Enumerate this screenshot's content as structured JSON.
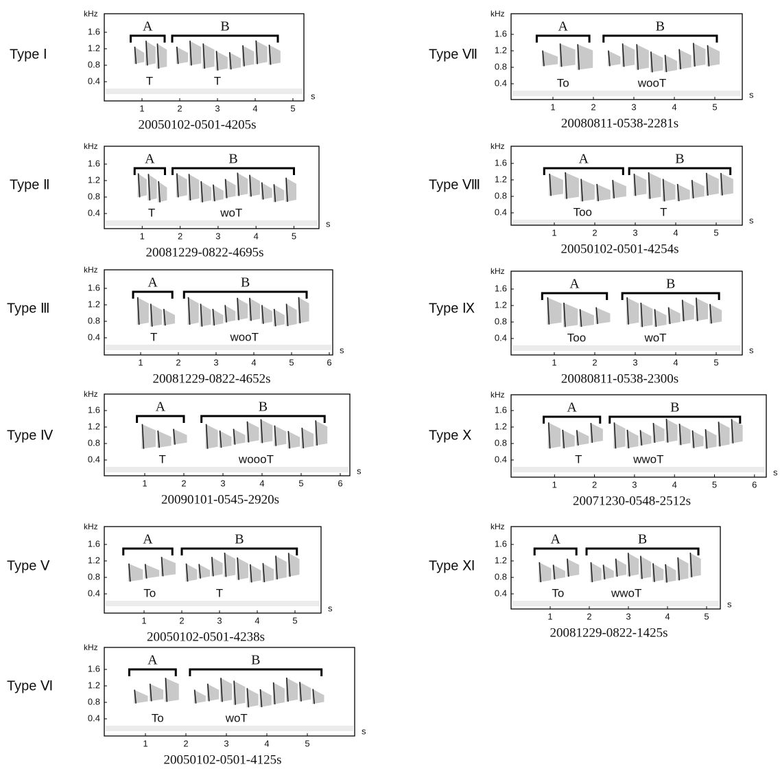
{
  "panels": [
    {
      "type_label": "Type Ⅰ",
      "y_unit": "kHz",
      "yticks": [
        1.6,
        1.2,
        0.8,
        0.4
      ],
      "x_unit": "s",
      "xticks": [
        1,
        2,
        3,
        4,
        5
      ],
      "sections": [
        "A",
        "B"
      ],
      "syllables": [
        "T",
        "T"
      ],
      "caption": "20050102-0501-4205s"
    },
    {
      "type_label": "Type Ⅱ",
      "y_unit": "kHz",
      "yticks": [
        1.6,
        1.2,
        0.8,
        0.4
      ],
      "x_unit": "s",
      "xticks": [
        1,
        2,
        3,
        4,
        5
      ],
      "sections": [
        "A",
        "B"
      ],
      "syllables": [
        "T",
        "woT"
      ],
      "caption": "20081229-0822-4695s"
    },
    {
      "type_label": "Type Ⅲ",
      "y_unit": "kHz",
      "yticks": [
        1.6,
        1.2,
        0.8,
        0.4
      ],
      "x_unit": "s",
      "xticks": [
        1,
        2,
        3,
        4,
        5,
        6
      ],
      "sections": [
        "A",
        "B"
      ],
      "syllables": [
        "T",
        "wooT"
      ],
      "caption": "20081229-0822-4652s"
    },
    {
      "type_label": "Type Ⅳ",
      "y_unit": "kHz",
      "yticks": [
        1.6,
        1.2,
        0.8,
        0.4
      ],
      "x_unit": "s",
      "xticks": [
        1,
        2,
        3,
        4,
        5,
        6
      ],
      "sections": [
        "A",
        "B"
      ],
      "syllables": [
        "T",
        "woooT"
      ],
      "caption": "20090101-0545-2920s"
    },
    {
      "type_label": "Type Ⅴ",
      "y_unit": "kHz",
      "yticks": [
        1.6,
        1.2,
        0.8,
        0.4
      ],
      "x_unit": "s",
      "xticks": [
        1,
        2,
        3,
        4,
        5
      ],
      "sections": [
        "A",
        "B"
      ],
      "syllables": [
        "To",
        "T"
      ],
      "caption": "20050102-0501-4238s"
    },
    {
      "type_label": "Type Ⅵ",
      "y_unit": "kHz",
      "yticks": [
        1.6,
        1.2,
        0.8,
        0.4
      ],
      "x_unit": "s",
      "xticks": [
        1,
        2,
        3,
        4,
        5
      ],
      "sections": [
        "A",
        "B"
      ],
      "syllables": [
        "To",
        "woT"
      ],
      "caption": "20050102-0501-4125s"
    },
    {
      "type_label": "Type Ⅶ",
      "y_unit": "kHz",
      "yticks": [
        1.6,
        1.2,
        0.8,
        0.4
      ],
      "x_unit": "s",
      "xticks": [
        1,
        2,
        3,
        4,
        5
      ],
      "sections": [
        "A",
        "B"
      ],
      "syllables": [
        "To",
        "wooT"
      ],
      "caption": "20080811-0538-2281s"
    },
    {
      "type_label": "Type Ⅷ",
      "y_unit": "kHz",
      "yticks": [
        1.6,
        1.2,
        0.8,
        0.4
      ],
      "x_unit": "s",
      "xticks": [
        1,
        2,
        3,
        4,
        5
      ],
      "sections": [
        "A",
        "B"
      ],
      "syllables": [
        "Too",
        "T"
      ],
      "caption": "20050102-0501-4254s"
    },
    {
      "type_label": "Type Ⅸ",
      "y_unit": "kHz",
      "yticks": [
        1.6,
        1.2,
        0.8,
        0.4
      ],
      "x_unit": "s",
      "xticks": [
        1,
        2,
        3,
        4,
        5
      ],
      "sections": [
        "A",
        "B"
      ],
      "syllables": [
        "Too",
        "woT"
      ],
      "caption": "20080811-0538-2300s"
    },
    {
      "type_label": "Type Ⅹ",
      "y_unit": "kHz",
      "yticks": [
        1.6,
        1.2,
        0.8,
        0.4
      ],
      "x_unit": "s",
      "xticks": [
        1,
        2,
        3,
        4,
        5,
        6
      ],
      "sections": [
        "A",
        "B"
      ],
      "syllables": [
        "T",
        "wwoT"
      ],
      "caption": "20071230-0548-2512s"
    },
    {
      "type_label": "Type Ⅺ",
      "y_unit": "kHz",
      "yticks": [
        1.6,
        1.2,
        0.8,
        0.4
      ],
      "x_unit": "s",
      "xticks": [
        1,
        2,
        3,
        4,
        5
      ],
      "sections": [
        "A",
        "B"
      ],
      "syllables": [
        "To",
        "wwoT"
      ],
      "caption": "20081229-0822-1425s"
    }
  ]
}
